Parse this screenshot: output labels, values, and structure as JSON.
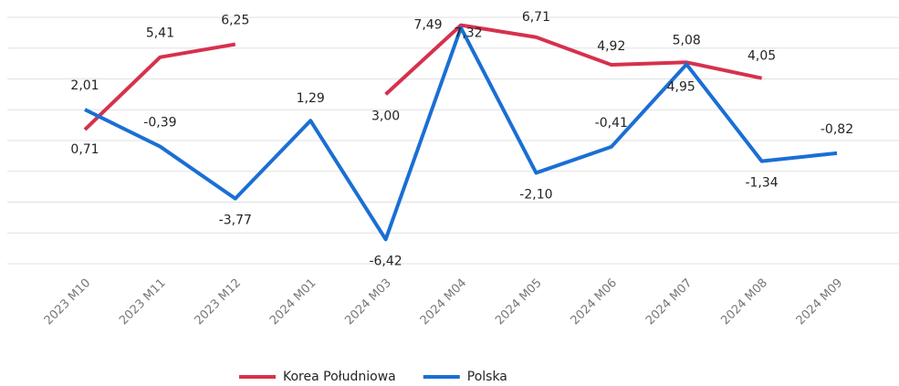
{
  "chart_data": {
    "type": "line",
    "categories": [
      "2023 M10",
      "2023 M11",
      "2023 M12",
      "2024 M01",
      "2024 M03",
      "2024 M04",
      "2024 M05",
      "2024 M06",
      "2024 M07",
      "2024 M08",
      "2024 M09"
    ],
    "series": [
      {
        "name": "Korea Południowa",
        "color": "#d6314d",
        "values": [
          0.71,
          5.41,
          6.25,
          null,
          3.0,
          7.49,
          6.71,
          4.92,
          5.08,
          4.05,
          null
        ],
        "value_labels": [
          "0,71",
          "5,41",
          "6,25",
          null,
          "3,00",
          "7,49",
          "6,71",
          "4,92",
          "5,08",
          "4,05",
          null
        ]
      },
      {
        "name": "Polska",
        "color": "#1a6fd4",
        "values": [
          2.01,
          -0.39,
          -3.77,
          1.29,
          -6.42,
          7.32,
          -2.1,
          -0.41,
          4.95,
          -1.34,
          -0.82
        ],
        "value_labels": [
          "2,01",
          "-0,39",
          "-3,77",
          "1,29",
          "-6,42",
          "7,32",
          "-2,10",
          "-0,41",
          "4,95",
          "-1,34",
          "-0,82"
        ]
      }
    ],
    "ylim": [
      -8,
      8
    ],
    "yticks": [
      -8,
      -6,
      -4,
      -2,
      0,
      2,
      4,
      6,
      8
    ],
    "grid": true,
    "legend": "bottom"
  }
}
